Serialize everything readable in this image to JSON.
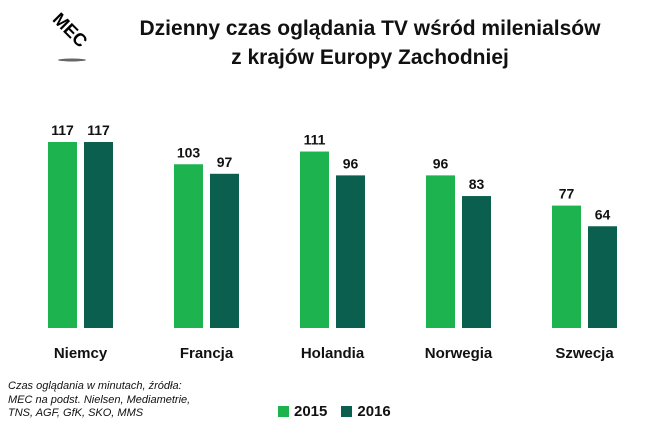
{
  "logo_text": "MEC",
  "chart_data": {
    "type": "bar",
    "title": "Dzienny czas oglądania TV wśród milenialsów z krajów Europy Zachodniej",
    "title_lines": [
      "Dzienny czas oglądania TV wśród milenialsów",
      "z krajów Europy Zachodniej"
    ],
    "categories": [
      "Niemcy",
      "Francja",
      "Holandia",
      "Norwegia",
      "Szwecja"
    ],
    "series": [
      {
        "name": "2015",
        "color": "#1db34f",
        "values": [
          117,
          103,
          111,
          96,
          77
        ]
      },
      {
        "name": "2016",
        "color": "#0b5f4e",
        "values": [
          117,
          97,
          96,
          83,
          64
        ]
      }
    ],
    "ylim": [
      0,
      117
    ],
    "grid": false,
    "legend": "bottom-center",
    "note": [
      "Czas oglądania w minutach, źródła:",
      "MEC na podst. Nielsen, Mediametrie,",
      "TNS, AGF, GfK, SKO, MMS"
    ]
  }
}
